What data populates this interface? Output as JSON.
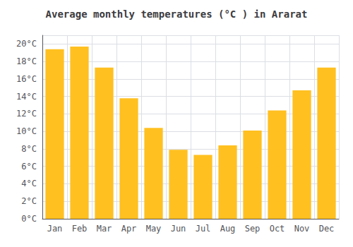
{
  "chart_data": {
    "type": "bar",
    "title": "Average monthly temperatures (°C ) in Ararat",
    "categories": [
      "Jan",
      "Feb",
      "Mar",
      "Apr",
      "May",
      "Jun",
      "Jul",
      "Aug",
      "Sep",
      "Oct",
      "Nov",
      "Dec"
    ],
    "values": [
      19.4,
      19.7,
      17.3,
      13.8,
      10.4,
      7.9,
      7.3,
      8.4,
      10.1,
      12.4,
      14.7,
      17.3
    ],
    "color": "#FFC020",
    "ylim": [
      0,
      21
    ],
    "yticks": [
      {
        "value": 0,
        "label": "0°C"
      },
      {
        "value": 2,
        "label": "2°C"
      },
      {
        "value": 4,
        "label": "4°C"
      },
      {
        "value": 6,
        "label": "6°C"
      },
      {
        "value": 8,
        "label": "8°C"
      },
      {
        "value": 10,
        "label": "10°C"
      },
      {
        "value": 12,
        "label": "12°C"
      },
      {
        "value": 14,
        "label": "14°C"
      },
      {
        "value": 16,
        "label": "16°C"
      },
      {
        "value": 18,
        "label": "18°C"
      },
      {
        "value": 20,
        "label": "20°C"
      }
    ],
    "grid": true
  }
}
